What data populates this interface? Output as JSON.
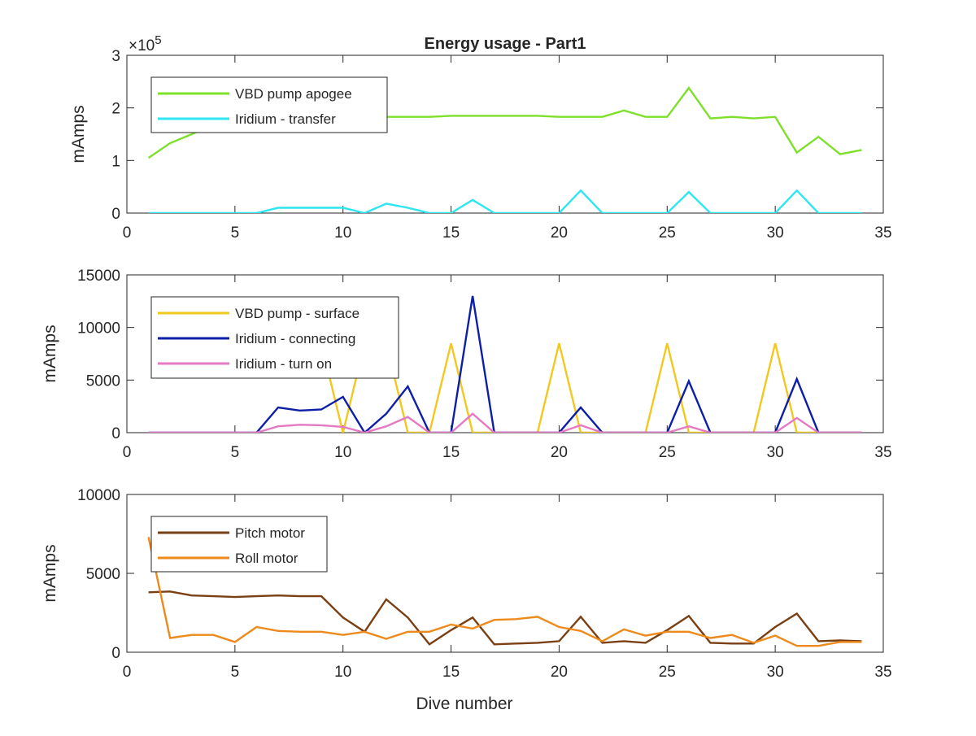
{
  "title": "Energy usage - Part1",
  "chart_data": [
    {
      "type": "line",
      "title": "Energy usage - Part1",
      "xlabel": "",
      "ylabel": "mAmps",
      "xlim": [
        0,
        35
      ],
      "ylim": [
        0,
        300000
      ],
      "x_ticks": [
        "0",
        "5",
        "10",
        "15",
        "20",
        "25",
        "30",
        "35"
      ],
      "y_ticks": [
        "0",
        "1",
        "2",
        "3"
      ],
      "y_exponent": "×10",
      "y_exponent_power": "5",
      "grid": false,
      "legend_position": "top-left",
      "series": [
        {
          "name": "VBD pump apogee",
          "color": "#7de02b",
          "x": [
            1,
            2,
            3,
            4,
            5,
            6,
            7,
            8,
            9,
            10,
            11,
            12,
            13,
            14,
            15,
            16,
            17,
            18,
            19,
            20,
            21,
            22,
            23,
            24,
            25,
            26,
            27,
            28,
            29,
            30,
            31,
            32,
            33,
            34
          ],
          "y": [
            105000,
            133000,
            150000,
            168000,
            176000,
            180000,
            182000,
            183000,
            183000,
            183000,
            183000,
            183000,
            183000,
            183000,
            185000,
            185000,
            185000,
            185000,
            185000,
            183000,
            183000,
            183000,
            195000,
            183000,
            183000,
            238000,
            180000,
            183000,
            180000,
            183000,
            115000,
            145000,
            112000,
            120000
          ]
        },
        {
          "name": "Iridium - transfer",
          "color": "#2ee6f0",
          "x": [
            1,
            2,
            3,
            4,
            5,
            6,
            7,
            8,
            9,
            10,
            11,
            12,
            13,
            14,
            15,
            16,
            17,
            18,
            19,
            20,
            21,
            22,
            23,
            24,
            25,
            26,
            27,
            28,
            29,
            30,
            31,
            32,
            33,
            34
          ],
          "y": [
            0,
            0,
            0,
            0,
            0,
            0,
            10000,
            10000,
            10000,
            10000,
            0,
            18000,
            10000,
            0,
            0,
            25000,
            0,
            0,
            0,
            0,
            43000,
            0,
            0,
            0,
            0,
            40000,
            0,
            0,
            0,
            0,
            43000,
            0,
            0,
            0
          ]
        }
      ]
    },
    {
      "type": "line",
      "title": "",
      "xlabel": "",
      "ylabel": "mAmps",
      "xlim": [
        0,
        35
      ],
      "ylim": [
        0,
        15000
      ],
      "x_ticks": [
        "0",
        "5",
        "10",
        "15",
        "20",
        "25",
        "30",
        "35"
      ],
      "y_ticks": [
        "0",
        "5000",
        "10000",
        "15000"
      ],
      "grid": false,
      "legend_position": "top-left",
      "series": [
        {
          "name": "VBD pump - surface",
          "color": "#f2c81e",
          "x": [
            1,
            2,
            3,
            4,
            5,
            6,
            7,
            8,
            9,
            10,
            11,
            12,
            13,
            14,
            15,
            16,
            17,
            18,
            19,
            20,
            21,
            22,
            23,
            24,
            25,
            26,
            27,
            28,
            29,
            30,
            31,
            32,
            33,
            34
          ],
          "y": [
            10000,
            null,
            null,
            null,
            null,
            null,
            null,
            null,
            8500,
            0,
            8500,
            8500,
            0,
            0,
            8500,
            0,
            0,
            0,
            0,
            8500,
            0,
            0,
            0,
            0,
            8500,
            0,
            0,
            0,
            0,
            8500,
            0,
            0,
            0,
            0
          ]
        },
        {
          "name": "Iridium - connecting",
          "color": "#0d1fa8",
          "x": [
            1,
            2,
            3,
            4,
            5,
            6,
            7,
            8,
            9,
            10,
            11,
            12,
            13,
            14,
            15,
            16,
            17,
            18,
            19,
            20,
            21,
            22,
            23,
            24,
            25,
            26,
            27,
            28,
            29,
            30,
            31,
            32,
            33,
            34
          ],
          "y": [
            0,
            0,
            0,
            0,
            0,
            0,
            2400,
            2100,
            2200,
            3400,
            0,
            1800,
            4400,
            0,
            0,
            13000,
            0,
            0,
            0,
            0,
            2400,
            0,
            0,
            0,
            0,
            4900,
            0,
            0,
            0,
            0,
            5100,
            0,
            0,
            0
          ]
        },
        {
          "name": "Iridium - turn on",
          "color": "#e579c3",
          "x": [
            1,
            2,
            3,
            4,
            5,
            6,
            7,
            8,
            9,
            10,
            11,
            12,
            13,
            14,
            15,
            16,
            17,
            18,
            19,
            20,
            21,
            22,
            23,
            24,
            25,
            26,
            27,
            28,
            29,
            30,
            31,
            32,
            33,
            34
          ],
          "y": [
            0,
            0,
            0,
            0,
            0,
            0,
            600,
            750,
            700,
            550,
            0,
            600,
            1500,
            0,
            0,
            1800,
            0,
            0,
            0,
            0,
            700,
            0,
            0,
            0,
            0,
            600,
            0,
            0,
            0,
            0,
            1400,
            0,
            0,
            0
          ]
        }
      ]
    },
    {
      "type": "line",
      "title": "",
      "xlabel": "Dive number",
      "ylabel": "mAmps",
      "xlim": [
        0,
        35
      ],
      "ylim": [
        0,
        10000
      ],
      "x_ticks": [
        "0",
        "5",
        "10",
        "15",
        "20",
        "25",
        "30",
        "35"
      ],
      "y_ticks": [
        "0",
        "5000",
        "10000"
      ],
      "grid": false,
      "legend_position": "top-left",
      "series": [
        {
          "name": "Pitch motor",
          "color": "#7a3f12",
          "x": [
            1,
            2,
            3,
            4,
            5,
            6,
            7,
            8,
            9,
            10,
            11,
            12,
            13,
            14,
            15,
            16,
            17,
            18,
            19,
            20,
            21,
            22,
            23,
            24,
            25,
            26,
            27,
            28,
            29,
            30,
            31,
            32,
            33,
            34
          ],
          "y": [
            3800,
            3850,
            3600,
            3550,
            3500,
            3550,
            3600,
            3550,
            3550,
            2200,
            1300,
            3350,
            2200,
            500,
            1400,
            2200,
            500,
            550,
            600,
            700,
            2250,
            600,
            700,
            600,
            1400,
            2300,
            600,
            550,
            550,
            1600,
            2450,
            700,
            750,
            700
          ]
        },
        {
          "name": "Roll motor",
          "color": "#ee8a1c",
          "x": [
            1,
            2,
            3,
            4,
            5,
            6,
            7,
            8,
            9,
            10,
            11,
            12,
            13,
            14,
            15,
            16,
            17,
            18,
            19,
            20,
            21,
            22,
            23,
            24,
            25,
            26,
            27,
            28,
            29,
            30,
            31,
            32,
            33,
            34
          ],
          "y": [
            7300,
            900,
            1100,
            1100,
            650,
            1600,
            1350,
            1300,
            1300,
            1100,
            1300,
            850,
            1300,
            1300,
            1750,
            1500,
            2050,
            2100,
            2250,
            1600,
            1350,
            700,
            1450,
            1050,
            1300,
            1300,
            900,
            1100,
            600,
            1050,
            400,
            400,
            650,
            650
          ]
        }
      ]
    }
  ]
}
